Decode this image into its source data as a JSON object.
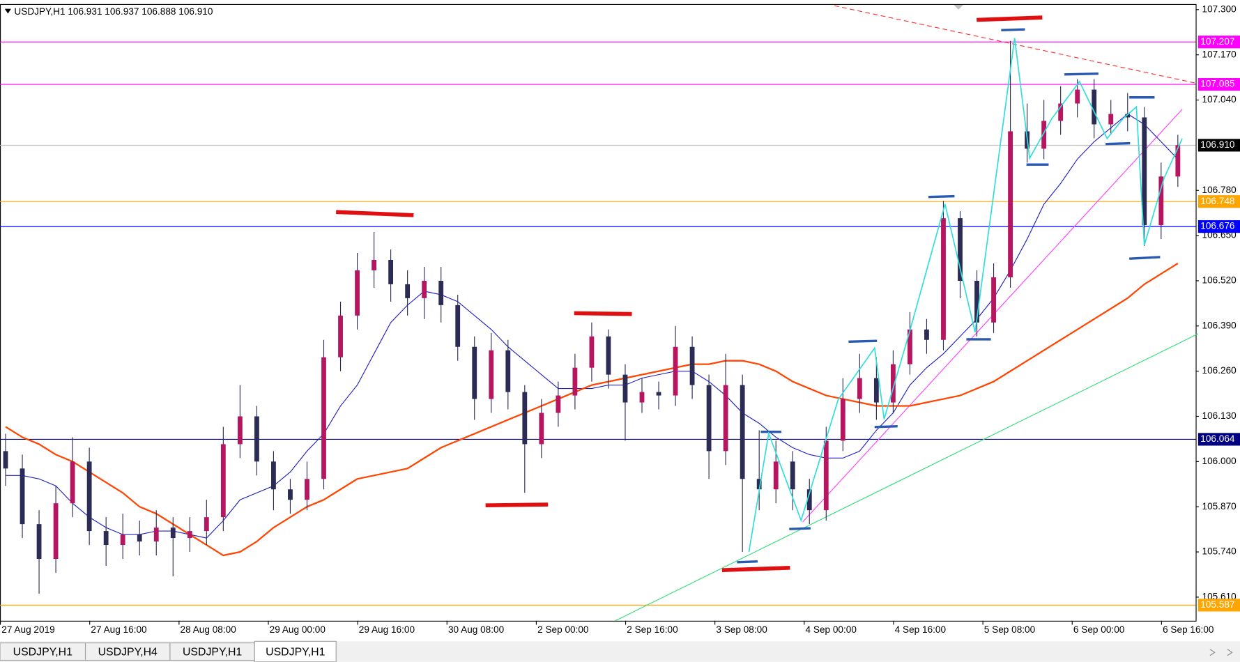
{
  "chart_data": {
    "type": "candlestick",
    "title": "USDJPY,H1  106.931 106.937 106.888 106.910",
    "x": [
      1,
      4,
      7,
      10,
      13,
      16,
      19,
      22,
      25,
      28,
      31,
      34,
      37,
      40,
      43,
      46,
      49,
      52,
      55,
      58,
      61,
      64,
      67,
      70,
      73,
      76,
      79,
      82,
      85,
      88,
      91,
      94,
      97,
      100,
      103,
      106,
      109,
      112,
      115,
      118,
      121,
      124,
      127,
      130,
      133,
      136,
      139,
      142,
      145,
      148,
      151,
      154,
      157,
      160,
      163,
      166,
      169,
      172,
      175,
      178,
      181,
      184,
      187,
      190,
      193,
      196,
      199,
      202,
      205,
      208,
      211
    ],
    "open": [
      106.03,
      105.98,
      105.82,
      105.72,
      105.88,
      106.0,
      105.8,
      105.76,
      105.79,
      105.77,
      105.81,
      105.78,
      105.8,
      105.84,
      106.05,
      106.13,
      106.0,
      105.92,
      105.89,
      105.95,
      106.3,
      106.42,
      106.55,
      106.58,
      106.51,
      106.47,
      106.52,
      106.45,
      106.33,
      106.18,
      106.32,
      106.2,
      106.05,
      106.14,
      106.19,
      106.27,
      106.36,
      106.25,
      106.17,
      106.2,
      106.19,
      106.33,
      106.22,
      106.03,
      106.22,
      105.95,
      105.92,
      106.0,
      105.92,
      105.86,
      106.06,
      106.18,
      106.24,
      106.17,
      106.28,
      106.38,
      106.35,
      106.7,
      106.52,
      106.4,
      106.53,
      106.95,
      106.9,
      106.98,
      107.03,
      107.07,
      106.97,
      107.0,
      106.99,
      106.68,
      106.82
    ],
    "high": [
      106.08,
      106.02,
      105.86,
      105.93,
      106.07,
      106.04,
      105.84,
      105.85,
      105.83,
      105.86,
      105.84,
      105.84,
      105.89,
      106.1,
      106.22,
      106.16,
      106.03,
      105.95,
      106.0,
      106.35,
      106.46,
      106.6,
      106.66,
      106.61,
      106.55,
      106.56,
      106.56,
      106.48,
      106.36,
      106.37,
      106.35,
      106.22,
      106.18,
      106.23,
      106.31,
      106.4,
      106.38,
      106.28,
      106.24,
      106.23,
      106.39,
      106.36,
      106.25,
      106.31,
      106.25,
      106.09,
      106.06,
      106.03,
      105.95,
      106.1,
      106.24,
      106.31,
      106.3,
      106.32,
      106.43,
      106.41,
      106.75,
      106.72,
      106.55,
      106.57,
      107.21,
      107.03,
      107.04,
      107.08,
      107.1,
      107.1,
      107.04,
      107.06,
      107.02,
      106.86,
      106.94
    ],
    "low": [
      105.93,
      105.78,
      105.62,
      105.68,
      105.84,
      105.76,
      105.7,
      105.72,
      105.73,
      105.73,
      105.67,
      105.74,
      105.76,
      105.8,
      106.01,
      105.96,
      105.86,
      105.85,
      105.86,
      105.92,
      106.26,
      106.38,
      106.5,
      106.46,
      106.42,
      106.41,
      106.4,
      106.29,
      106.12,
      106.14,
      106.15,
      105.91,
      106.01,
      106.1,
      106.15,
      106.23,
      106.21,
      106.06,
      106.14,
      106.15,
      106.16,
      106.18,
      105.95,
      105.99,
      105.74,
      105.86,
      105.88,
      105.86,
      105.82,
      105.83,
      106.03,
      106.14,
      106.12,
      106.14,
      106.25,
      106.31,
      106.32,
      106.47,
      106.36,
      106.37,
      106.5,
      106.86,
      106.87,
      106.94,
      106.99,
      106.93,
      106.94,
      106.95,
      106.62,
      106.64,
      106.79
    ],
    "close": [
      105.98,
      105.82,
      105.72,
      105.88,
      106.0,
      105.8,
      105.76,
      105.79,
      105.77,
      105.81,
      105.78,
      105.8,
      105.84,
      106.05,
      106.13,
      106.0,
      105.92,
      105.89,
      105.95,
      106.3,
      106.42,
      106.55,
      106.58,
      106.51,
      106.47,
      106.52,
      106.45,
      106.33,
      106.18,
      106.32,
      106.2,
      106.05,
      106.14,
      106.19,
      106.27,
      106.36,
      106.25,
      106.17,
      106.2,
      106.19,
      106.33,
      106.22,
      106.03,
      106.22,
      105.95,
      105.92,
      106.0,
      105.92,
      105.86,
      106.06,
      106.18,
      106.24,
      106.17,
      106.28,
      106.38,
      106.35,
      106.7,
      106.52,
      106.4,
      106.53,
      106.95,
      106.9,
      106.98,
      107.03,
      107.07,
      106.97,
      107.0,
      106.99,
      106.68,
      106.82,
      106.91
    ],
    "up_color": "#b5165f",
    "down_color": "#2b2b55",
    "lines": [
      {
        "color": "#1f1fbf",
        "values": [
          105.96,
          105.96,
          105.95,
          105.93,
          105.88,
          105.84,
          105.81,
          105.79,
          105.79,
          105.8,
          105.8,
          105.79,
          105.78,
          105.83,
          105.89,
          105.91,
          105.93,
          105.97,
          106.03,
          106.08,
          106.16,
          106.22,
          106.31,
          106.4,
          106.45,
          106.49,
          106.48,
          106.46,
          106.42,
          106.38,
          106.33,
          106.29,
          106.25,
          106.21,
          106.21,
          106.21,
          106.22,
          106.22,
          106.24,
          106.25,
          106.26,
          106.26,
          106.23,
          106.19,
          106.14,
          106.11,
          106.07,
          106.04,
          106.02,
          106.01,
          106.01,
          106.03,
          106.09,
          106.14,
          106.22,
          106.27,
          106.31,
          106.36,
          106.41,
          106.47,
          106.55,
          106.64,
          106.74,
          106.8,
          106.87,
          106.92,
          106.96,
          107.0,
          106.97,
          106.92,
          106.87
        ]
      },
      {
        "color": "#ff4500",
        "values": [
          106.1,
          106.07,
          106.05,
          106.02,
          106.0,
          105.97,
          105.94,
          105.91,
          105.87,
          105.85,
          105.82,
          105.79,
          105.76,
          105.73,
          105.74,
          105.77,
          105.81,
          105.84,
          105.87,
          105.89,
          105.92,
          105.95,
          105.96,
          105.97,
          105.98,
          106.01,
          106.04,
          106.06,
          106.08,
          106.1,
          106.12,
          106.14,
          106.16,
          106.18,
          106.2,
          106.22,
          106.23,
          106.24,
          106.25,
          106.26,
          106.27,
          106.28,
          106.28,
          106.29,
          106.29,
          106.28,
          106.26,
          106.23,
          106.21,
          106.19,
          106.18,
          106.17,
          106.16,
          106.16,
          106.16,
          106.17,
          106.18,
          106.19,
          106.21,
          106.23,
          106.26,
          106.29,
          106.32,
          106.35,
          106.38,
          106.41,
          106.44,
          106.47,
          106.51,
          106.54,
          106.57
        ]
      }
    ],
    "levels": [
      {
        "value": 107.207,
        "color": "#ff00ff"
      },
      {
        "value": 107.085,
        "color": "#ff00ff"
      },
      {
        "value": 106.91,
        "label": "106.910",
        "color": "#000000",
        "line_color": "#c0c0c0"
      },
      {
        "value": 106.748,
        "color": "#ffa500"
      },
      {
        "value": 106.676,
        "color": "#0000ff"
      },
      {
        "value": 106.064,
        "color": "#000080"
      },
      {
        "value": 105.587,
        "color": "#ffa500"
      }
    ],
    "xlim": [
      0,
      214.2
    ],
    "ylim": [
      105.542,
      107.316
    ],
    "xticks": [
      {
        "value": 0,
        "label": "27 Aug 2019"
      },
      {
        "value": 16,
        "label": "27 Aug 16:00"
      },
      {
        "value": 32,
        "label": "28 Aug 08:00"
      },
      {
        "value": 48,
        "label": "29 Aug 00:00"
      },
      {
        "value": 64,
        "label": "29 Aug 16:00"
      },
      {
        "value": 80,
        "label": "30 Aug 08:00"
      },
      {
        "value": 96,
        "label": "2 Sep 00:00"
      },
      {
        "value": 112,
        "label": "2 Sep 16:00"
      },
      {
        "value": 128,
        "label": "3 Sep 08:00"
      },
      {
        "value": 144,
        "label": "4 Sep 00:00"
      },
      {
        "value": 160,
        "label": "4 Sep 16:00"
      },
      {
        "value": 176,
        "label": "5 Sep 08:00"
      },
      {
        "value": 192,
        "label": "6 Sep 00:00"
      },
      {
        "value": 208,
        "label": "6 Sep 16:00"
      }
    ],
    "yticks": [
      {
        "value": 107.3,
        "label": "107.300"
      },
      {
        "value": 107.17,
        "label": "107.170"
      },
      {
        "value": 107.04,
        "label": "107.040"
      },
      {
        "value": 106.78,
        "label": "106.780"
      },
      {
        "value": 106.65,
        "label": "106.650"
      },
      {
        "value": 106.52,
        "label": "106.520"
      },
      {
        "value": 106.39,
        "label": "106.390"
      },
      {
        "value": 106.26,
        "label": "106.260"
      },
      {
        "value": 106.13,
        "label": "106.130"
      },
      {
        "value": 106.0,
        "label": "106.000"
      },
      {
        "value": 105.87,
        "label": "105.870"
      },
      {
        "value": 105.74,
        "label": "105.740"
      },
      {
        "value": 105.61,
        "label": "105.610"
      }
    ]
  },
  "tabs": [
    "USDJPY,H1",
    "USDJPY,H4",
    "USDJPY,H1",
    "USDJPY,H1"
  ]
}
